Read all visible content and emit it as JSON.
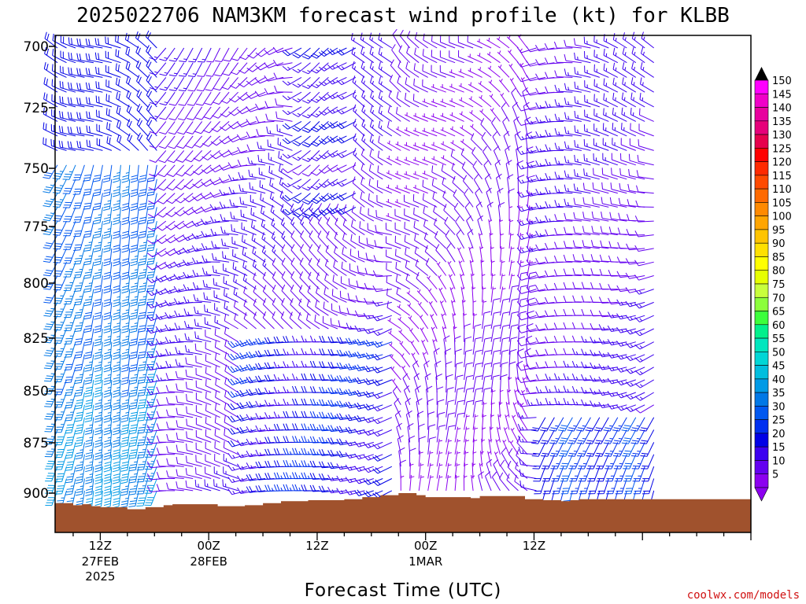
{
  "chart_data": {
    "type": "wind_barb_time_height",
    "title": "2025022706 NAM3KM forecast wind profile (kt) for KLBB",
    "xlabel": "Forecast Time (UTC)",
    "ylabel": "",
    "credit": "coolwx.com/models",
    "ylim": [
      911,
      697
    ],
    "y_ticks": [
      "700",
      "725",
      "750",
      "775",
      "800",
      "825",
      "850",
      "875",
      "900"
    ],
    "y_tick_values": [
      700,
      725,
      750,
      775,
      800,
      825,
      850,
      875,
      900
    ],
    "x_range_hours": [
      7,
      84
    ],
    "x_ticks": [
      {
        "hour": 12,
        "l1": "12Z",
        "l2": "27FEB",
        "l3": "2025"
      },
      {
        "hour": 24,
        "l1": "00Z",
        "l2": "28FEB",
        "l3": ""
      },
      {
        "hour": 36,
        "l1": "12Z",
        "l2": "",
        "l3": ""
      },
      {
        "hour": 48,
        "l1": "00Z",
        "l2": "1MAR",
        "l3": ""
      },
      {
        "hour": 60,
        "l1": "12Z",
        "l2": "",
        "l3": ""
      }
    ],
    "colorbar": {
      "labels": [
        "150",
        "145",
        "140",
        "135",
        "130",
        "125",
        "120",
        "115",
        "110",
        "105",
        "100",
        "95",
        "90",
        "85",
        "80",
        "75",
        "70",
        "65",
        "60",
        "55",
        "50",
        "45",
        "40",
        "35",
        "30",
        "25",
        "20",
        "15",
        "10",
        "5"
      ],
      "values": [
        150,
        145,
        140,
        135,
        130,
        125,
        120,
        115,
        110,
        105,
        100,
        95,
        90,
        85,
        80,
        75,
        70,
        65,
        60,
        55,
        50,
        45,
        40,
        35,
        30,
        25,
        20,
        15,
        10,
        5
      ],
      "colors": [
        "#ff00ff",
        "#f000c8",
        "#e8009e",
        "#e6007a",
        "#e6004d",
        "#ff0000",
        "#ff2a00",
        "#ff4a00",
        "#ff6a00",
        "#ff8a00",
        "#ffa500",
        "#ffc400",
        "#ffe000",
        "#ffff00",
        "#e6ff00",
        "#c8ff3c",
        "#8cff3c",
        "#3cff3c",
        "#00f08c",
        "#00e6be",
        "#00d6d6",
        "#00bede",
        "#009ae6",
        "#0078e6",
        "#0058f0",
        "#0030f0",
        "#0000e6",
        "#3c00f0",
        "#6400f0",
        "#8c00f0"
      ]
    },
    "terrain": {
      "color": "#a0522d",
      "hours": [
        7,
        9,
        10,
        11,
        12,
        15,
        17,
        19,
        20,
        22,
        25,
        28,
        30,
        32,
        35,
        39,
        41,
        43,
        45,
        47,
        48,
        53,
        54,
        59,
        61,
        63,
        64,
        65,
        68
      ],
      "surface_hPa": [
        905,
        906,
        905.5,
        906.5,
        907,
        908,
        907,
        906,
        905.5,
        905.5,
        906.5,
        906,
        905,
        904,
        903.5,
        903,
        902,
        901,
        900,
        901,
        902,
        902.5,
        901.5,
        903,
        903.5,
        904,
        903.5,
        903,
        903
      ]
    },
    "barb_grid": {
      "hours_start": 7,
      "hours_step": 1,
      "hours_count": 67,
      "levels_start": 700,
      "levels_step": 6,
      "levels_count": 34,
      "note": "wind barbs for each forecast hour and pressure level"
    }
  }
}
